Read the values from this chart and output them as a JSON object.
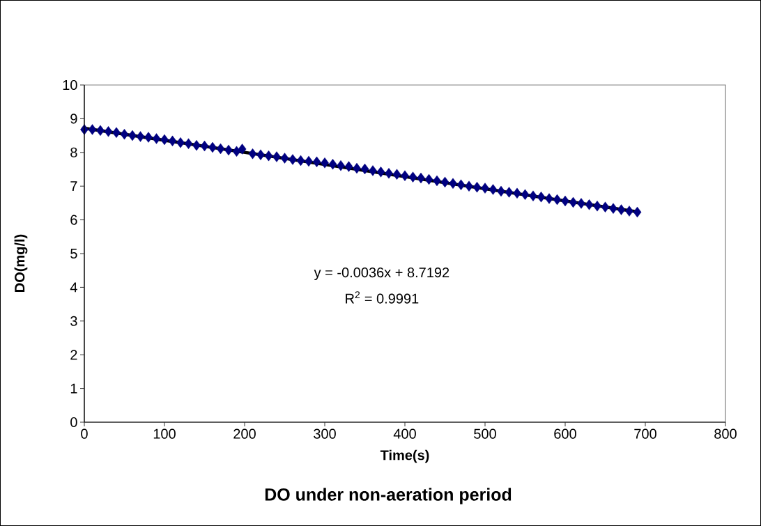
{
  "chart_data": {
    "type": "scatter",
    "title": "DO under non-aeration period",
    "xlabel": "Time(s)",
    "ylabel": "DO(mg/l)",
    "annotations": [
      "y = -0.0036x + 8.7192",
      "R$^{2}$ = 0.9991"
    ],
    "series": [
      {
        "color": "#000080",
        "marker": "diamond",
        "x": [
          0,
          10,
          20,
          30,
          40,
          50,
          60,
          70,
          80,
          90,
          100,
          110,
          120,
          130,
          140,
          150,
          160,
          170,
          180,
          190,
          197,
          210,
          220,
          230,
          240,
          250,
          260,
          270,
          280,
          290,
          300,
          310,
          320,
          330,
          340,
          350,
          360,
          370,
          380,
          390,
          400,
          410,
          420,
          430,
          440,
          450,
          460,
          470,
          480,
          490,
          500,
          510,
          520,
          530,
          540,
          550,
          560,
          570,
          580,
          590,
          600,
          610,
          620,
          630,
          640,
          650,
          660,
          670,
          680,
          690
        ],
        "values": [
          8.68,
          8.68,
          8.65,
          8.62,
          8.59,
          8.54,
          8.5,
          8.47,
          8.45,
          8.41,
          8.38,
          8.34,
          8.29,
          8.26,
          8.21,
          8.19,
          8.15,
          8.11,
          8.07,
          8.03,
          8.1,
          7.96,
          7.93,
          7.9,
          7.87,
          7.83,
          7.79,
          7.76,
          7.74,
          7.72,
          7.69,
          7.65,
          7.61,
          7.58,
          7.53,
          7.51,
          7.46,
          7.42,
          7.38,
          7.35,
          7.31,
          7.27,
          7.24,
          7.2,
          7.16,
          7.12,
          7.08,
          7.04,
          7.0,
          6.97,
          6.94,
          6.9,
          6.85,
          6.82,
          6.79,
          6.75,
          6.71,
          6.68,
          6.63,
          6.6,
          6.56,
          6.52,
          6.49,
          6.45,
          6.41,
          6.38,
          6.34,
          6.3,
          6.26,
          6.23
        ]
      },
      {
        "type": "line",
        "color": "#000000",
        "marker": "none",
        "x": [
          0,
          690
        ],
        "values": [
          8.72,
          6.24
        ]
      }
    ],
    "xlim": [
      0,
      800
    ],
    "ylim": [
      0,
      10
    ],
    "xticks": [
      0,
      100,
      200,
      300,
      400,
      500,
      600,
      700,
      800
    ],
    "yticks": [
      0,
      1,
      2,
      3,
      4,
      5,
      6,
      7,
      8,
      9,
      10
    ],
    "grid": false
  }
}
